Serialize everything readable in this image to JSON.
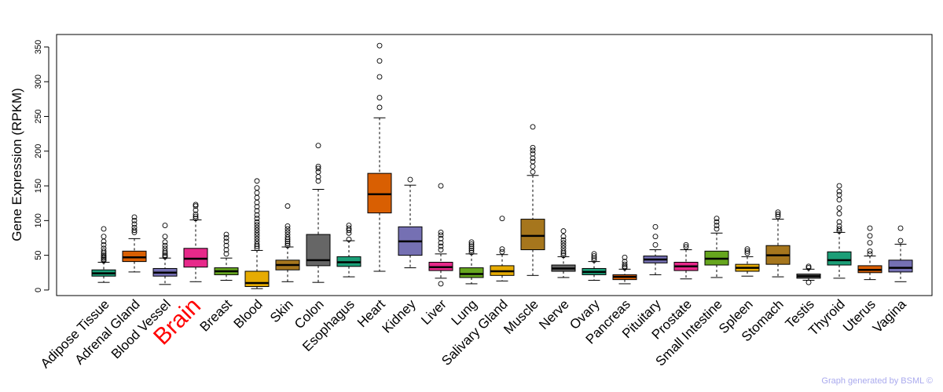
{
  "chart_data": {
    "type": "boxplot",
    "title": "",
    "xlabel": "",
    "ylabel": "Gene Expression (RPKM)",
    "ylim": [
      -8,
      368
    ],
    "yticks": [
      0,
      50,
      100,
      150,
      200,
      250,
      300,
      350
    ],
    "highlight": "Brain",
    "credit": "Graph generated by BSML ©",
    "categories": [
      {
        "name": "Adipose Tissue",
        "color": "#1b9e77",
        "whisker_low": 11,
        "q1": 20,
        "median": 24,
        "q3": 29,
        "whisker_high": 40,
        "outliers": [
          42,
          44,
          46,
          48,
          50,
          53,
          56,
          60,
          65,
          70,
          77,
          88
        ]
      },
      {
        "name": "Adrenal Gland",
        "color": "#d95f02",
        "whisker_low": 26,
        "q1": 41,
        "median": 47,
        "q3": 56,
        "whisker_high": 74,
        "outliers": [
          83,
          86,
          90,
          95,
          100,
          105
        ]
      },
      {
        "name": "Blood Vessel",
        "color": "#7570b3",
        "whisker_low": 8,
        "q1": 20,
        "median": 25,
        "q3": 31,
        "whisker_high": 46,
        "outliers": [
          48,
          50,
          53,
          56,
          60,
          64,
          69,
          77,
          93
        ]
      },
      {
        "name": "Brain",
        "color": "#e7298a",
        "whisker_low": 12,
        "q1": 33,
        "median": 45,
        "q3": 60,
        "whisker_high": 101,
        "outliers": [
          103,
          106,
          109,
          115,
          121,
          123
        ]
      },
      {
        "name": "Breast",
        "color": "#66a61e",
        "whisker_low": 14,
        "q1": 22,
        "median": 27,
        "q3": 32,
        "whisker_high": 46,
        "outliers": [
          52,
          58,
          64,
          70,
          75,
          80
        ]
      },
      {
        "name": "Blood",
        "color": "#e6ab02",
        "whisker_low": 2,
        "q1": 5,
        "median": 10,
        "q3": 27,
        "whisker_high": 57,
        "outliers": [
          60,
          63,
          66,
          70,
          74,
          78,
          82,
          86,
          90,
          94,
          98,
          103,
          108,
          114,
          120,
          126,
          133,
          140,
          147,
          157
        ]
      },
      {
        "name": "Skin",
        "color": "#a6761d",
        "whisker_low": 12,
        "q1": 29,
        "median": 36,
        "q3": 43,
        "whisker_high": 62,
        "outliers": [
          64,
          67,
          70,
          73,
          76,
          80,
          84,
          88,
          92,
          121
        ]
      },
      {
        "name": "Colon",
        "color": "#666666",
        "whisker_low": 11,
        "q1": 35,
        "median": 43,
        "q3": 80,
        "whisker_high": 145,
        "outliers": [
          157,
          163,
          170,
          175,
          178,
          208
        ]
      },
      {
        "name": "Esophagus",
        "color": "#1b9e77",
        "whisker_low": 19,
        "q1": 34,
        "median": 40,
        "q3": 48,
        "whisker_high": 71,
        "outliers": [
          73,
          82,
          86,
          89,
          93
        ]
      },
      {
        "name": "Heart",
        "color": "#d95f02",
        "whisker_low": 27,
        "q1": 111,
        "median": 138,
        "q3": 168,
        "whisker_high": 248,
        "outliers": [
          263,
          277,
          307,
          330,
          352
        ]
      },
      {
        "name": "Kidney",
        "color": "#7570b3",
        "whisker_low": 32,
        "q1": 50,
        "median": 70,
        "q3": 91,
        "whisker_high": 151,
        "outliers": [
          159
        ]
      },
      {
        "name": "Liver",
        "color": "#e7298a",
        "whisker_low": 17,
        "q1": 28,
        "median": 33,
        "q3": 40,
        "whisker_high": 52,
        "outliers": [
          9,
          58,
          63,
          68,
          74,
          79,
          83,
          150
        ]
      },
      {
        "name": "Lung",
        "color": "#66a61e",
        "whisker_low": 9,
        "q1": 18,
        "median": 23,
        "q3": 32,
        "whisker_high": 52,
        "outliers": [
          54,
          57,
          60,
          63,
          66,
          69
        ]
      },
      {
        "name": "Salivary Gland",
        "color": "#e6ab02",
        "whisker_low": 13,
        "q1": 21,
        "median": 27,
        "q3": 35,
        "whisker_high": 51,
        "outliers": [
          55,
          59,
          103
        ]
      },
      {
        "name": "Muscle",
        "color": "#a6761d",
        "whisker_low": 21,
        "q1": 58,
        "median": 78,
        "q3": 102,
        "whisker_high": 165,
        "outliers": [
          170,
          178,
          185,
          190,
          196,
          201,
          205,
          235
        ]
      },
      {
        "name": "Nerve",
        "color": "#666666",
        "whisker_low": 18,
        "q1": 27,
        "median": 31,
        "q3": 36,
        "whisker_high": 48,
        "outliers": [
          50,
          53,
          56,
          60,
          64,
          68,
          72,
          77,
          85
        ]
      },
      {
        "name": "Ovary",
        "color": "#1b9e77",
        "whisker_low": 14,
        "q1": 22,
        "median": 26,
        "q3": 31,
        "whisker_high": 41,
        "outliers": [
          43,
          46,
          49,
          52
        ]
      },
      {
        "name": "Pancreas",
        "color": "#d95f02",
        "whisker_low": 9,
        "q1": 15,
        "median": 19,
        "q3": 22,
        "whisker_high": 30,
        "outliers": [
          32,
          34,
          37,
          41,
          47
        ]
      },
      {
        "name": "Pituitary",
        "color": "#7570b3",
        "whisker_low": 22,
        "q1": 39,
        "median": 44,
        "q3": 49,
        "whisker_high": 58,
        "outliers": [
          65,
          77,
          91
        ]
      },
      {
        "name": "Prostate",
        "color": "#e7298a",
        "whisker_low": 16,
        "q1": 28,
        "median": 34,
        "q3": 40,
        "whisker_high": 58,
        "outliers": [
          62,
          65
        ]
      },
      {
        "name": "Small Intestine",
        "color": "#66a61e",
        "whisker_low": 18,
        "q1": 36,
        "median": 45,
        "q3": 56,
        "whisker_high": 82,
        "outliers": [
          88,
          93,
          98,
          103
        ]
      },
      {
        "name": "Spleen",
        "color": "#e6ab02",
        "whisker_low": 20,
        "q1": 27,
        "median": 32,
        "q3": 37,
        "whisker_high": 48,
        "outliers": [
          53,
          56,
          59
        ]
      },
      {
        "name": "Stomach",
        "color": "#a6761d",
        "whisker_low": 19,
        "q1": 37,
        "median": 50,
        "q3": 64,
        "whisker_high": 102,
        "outliers": [
          106,
          109,
          112
        ]
      },
      {
        "name": "Testis",
        "color": "#666666",
        "whisker_low": 14,
        "q1": 17,
        "median": 20,
        "q3": 23,
        "whisker_high": 30,
        "outliers": [
          11,
          32,
          34
        ]
      },
      {
        "name": "Thyroid",
        "color": "#1b9e77",
        "whisker_low": 17,
        "q1": 36,
        "median": 43,
        "q3": 55,
        "whisker_high": 83,
        "outliers": [
          85,
          88,
          92,
          98,
          110,
          118,
          130,
          137,
          142,
          150
        ]
      },
      {
        "name": "Uterus",
        "color": "#d95f02",
        "whisker_low": 15,
        "q1": 25,
        "median": 29,
        "q3": 35,
        "whisker_high": 49,
        "outliers": [
          52,
          56,
          68,
          78,
          89
        ]
      },
      {
        "name": "Vagina",
        "color": "#7570b3",
        "whisker_low": 12,
        "q1": 26,
        "median": 32,
        "q3": 43,
        "whisker_high": 66,
        "outliers": [
          71,
          89
        ]
      }
    ]
  }
}
